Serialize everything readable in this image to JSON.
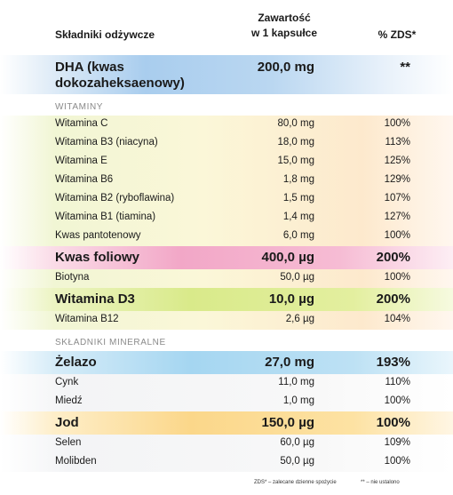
{
  "header": {
    "name_label": "Składniki odżywcze",
    "amount_line1": "Zawartość",
    "amount_line2": "w 1 kapsułce",
    "pct_label": "% ZDS*"
  },
  "rows": [
    {
      "name": "DHA (kwas dokozaheksaenowy)",
      "amount": "200,0 mg",
      "pct": "**"
    },
    {
      "section": "WITAMINY"
    },
    {
      "name": "Witamina C",
      "amount": "80,0 mg",
      "pct": "100%"
    },
    {
      "name": "Witamina B3 (niacyna)",
      "amount": "18,0 mg",
      "pct": "113%"
    },
    {
      "name": "Witamina E",
      "amount": "15,0 mg",
      "pct": "125%"
    },
    {
      "name": "Witamina B6",
      "amount": "1,8 mg",
      "pct": "129%"
    },
    {
      "name": "Witamina B2 (ryboflawina)",
      "amount": "1,5 mg",
      "pct": "107%"
    },
    {
      "name": "Witamina B1 (tiamina)",
      "amount": "1,4 mg",
      "pct": "127%"
    },
    {
      "name": "Kwas pantotenowy",
      "amount": "6,0 mg",
      "pct": "100%"
    },
    {
      "name": "Kwas foliowy",
      "amount": "400,0 µg",
      "pct": "200%"
    },
    {
      "name": "Biotyna",
      "amount": "50,0 µg",
      "pct": "100%"
    },
    {
      "name": "Witamina D3",
      "amount": "10,0 µg",
      "pct": "200%"
    },
    {
      "name": "Witamina B12",
      "amount": "2,6 µg",
      "pct": "104%"
    },
    {
      "section": "SKŁADNIKI MINERALNE"
    },
    {
      "name": "Żelazo",
      "amount": "27,0 mg",
      "pct": "193%"
    },
    {
      "name": "Cynk",
      "amount": "11,0 mg",
      "pct": "110%"
    },
    {
      "name": "Miedź",
      "amount": "1,0 mg",
      "pct": "100%"
    },
    {
      "name": "Jod",
      "amount": "150,0 µg",
      "pct": "100%"
    },
    {
      "name": "Selen",
      "amount": "60,0 µg",
      "pct": "109%"
    },
    {
      "name": "Molibden",
      "amount": "50,0 µg",
      "pct": "100%"
    }
  ],
  "footnotes": {
    "zds": "ZDS* – zalecane dzienne spożycie",
    "not_set": "** – nie ustalono"
  },
  "colors": {
    "dha": "#a9cdee",
    "vitamins": "#fbf7d8",
    "folic_acid": "#f2a7c7",
    "vitamin_d3": "#d9ea8a",
    "iron": "#a5d6f1",
    "iodine": "#fbd78a"
  }
}
